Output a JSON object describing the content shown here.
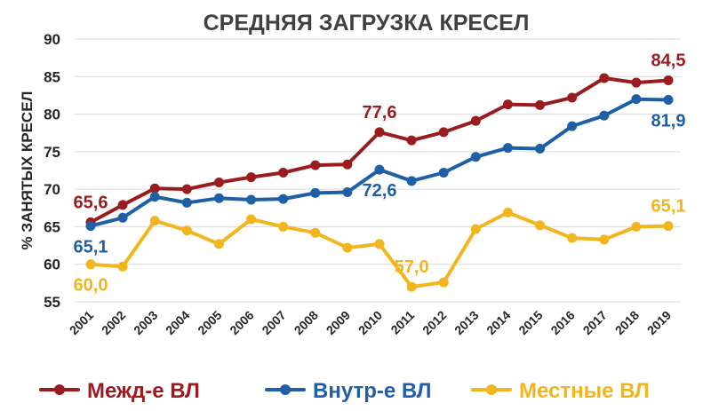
{
  "chart_data": {
    "type": "line",
    "title": "СРЕДНЯЯ ЗАГРУЗКА КРЕСЕЛ",
    "ylabel": "% ЗАНЯТЫХ КРЕСЕЛ",
    "xlabel": "",
    "ylim": [
      55,
      90
    ],
    "yticks": [
      "90",
      "85",
      "80",
      "75",
      "70",
      "65",
      "60",
      "55"
    ],
    "categories": [
      "2001",
      "2002",
      "2003",
      "2004",
      "2005",
      "2006",
      "2007",
      "2008",
      "2009",
      "2010",
      "2011",
      "2012",
      "2013",
      "2014",
      "2015",
      "2016",
      "2017",
      "2018",
      "2019"
    ],
    "grid": true,
    "legend_position": "bottom",
    "series": [
      {
        "name": "Межд-е ВЛ",
        "color": "#9b1c1f",
        "values": [
          65.6,
          67.9,
          70.1,
          70.0,
          70.9,
          71.6,
          72.2,
          73.2,
          73.3,
          77.6,
          76.5,
          77.6,
          79.1,
          81.3,
          81.2,
          82.2,
          84.8,
          84.2,
          84.5
        ],
        "labels": [
          {
            "index": 0,
            "text": "65,6",
            "pos": "above"
          },
          {
            "index": 9,
            "text": "77,6",
            "pos": "above"
          },
          {
            "index": 18,
            "text": "84,5",
            "pos": "above"
          }
        ]
      },
      {
        "name": "Внутр-е ВЛ",
        "color": "#1f5fa6",
        "values": [
          65.1,
          66.2,
          69.0,
          68.2,
          68.8,
          68.6,
          68.7,
          69.5,
          69.6,
          72.6,
          71.1,
          72.2,
          74.3,
          75.5,
          75.4,
          78.4,
          79.8,
          82.0,
          81.9
        ],
        "labels": [
          {
            "index": 0,
            "text": "65,1",
            "pos": "below"
          },
          {
            "index": 9,
            "text": "72,6",
            "pos": "below"
          },
          {
            "index": 18,
            "text": "81,9",
            "pos": "below"
          }
        ]
      },
      {
        "name": "Местные ВЛ",
        "color": "#f2b51d",
        "values": [
          60.0,
          59.7,
          65.8,
          64.5,
          62.7,
          66.0,
          65.0,
          64.2,
          62.2,
          62.7,
          57.0,
          57.6,
          64.7,
          66.9,
          65.2,
          63.5,
          63.3,
          65.0,
          65.1
        ],
        "labels": [
          {
            "index": 0,
            "text": "60,0",
            "pos": "below"
          },
          {
            "index": 10,
            "text": "57,0",
            "pos": "above"
          },
          {
            "index": 18,
            "text": "65,1",
            "pos": "above"
          }
        ]
      }
    ]
  }
}
